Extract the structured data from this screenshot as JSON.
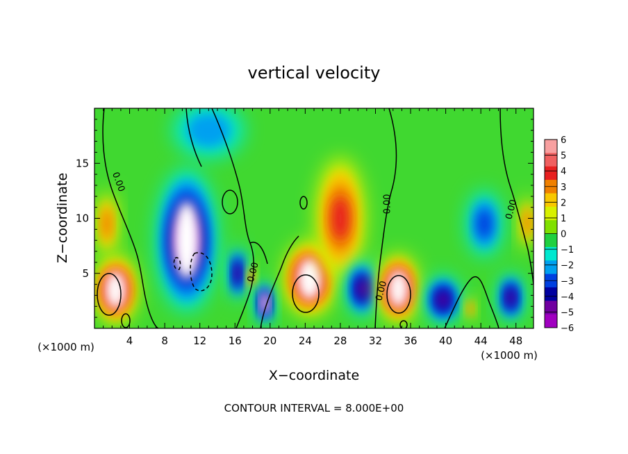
{
  "chart_data": {
    "type": "heatmap",
    "title": "vertical velocity",
    "xlabel": "X−coordinate",
    "ylabel": "Z−coordinate",
    "x_unit_left": "(×1000 m)",
    "x_unit_right": "(×1000 m)",
    "footer": "CONTOUR INTERVAL = 8.000E+00",
    "xlim": [
      0,
      50
    ],
    "ylim": [
      0,
      20
    ],
    "x_ticks": [
      4,
      8,
      12,
      16,
      20,
      24,
      28,
      32,
      36,
      40,
      44,
      48
    ],
    "y_ticks": [
      5,
      10,
      15
    ],
    "colorbar": {
      "levels": [
        "6",
        "5",
        "4",
        "3",
        "2",
        "1",
        "0",
        "−1",
        "−2",
        "−3",
        "−4",
        "−5",
        "−6"
      ],
      "colors": [
        "#f8a0a0",
        "#f06060",
        "#e82020",
        "#f08000",
        "#f8c800",
        "#d8f000",
        "#80e000",
        "#20d040",
        "#00e8d0",
        "#00a0f0",
        "#0040e0",
        "#0000a0",
        "#7000a0",
        "#a000c0"
      ],
      "range": [
        -6,
        6
      ]
    },
    "contour_labels": [
      {
        "text": "0.00",
        "x": 2.7,
        "z": 13.3,
        "rot": 70
      },
      {
        "text": "0.00",
        "x": 18.1,
        "z": 5.1,
        "rot": -75
      },
      {
        "text": "0.00",
        "x": 32.7,
        "z": 3.4,
        "rot": -75
      },
      {
        "text": "0.00",
        "x": 33.4,
        "z": 11.3,
        "rot": -90
      },
      {
        "text": "0.00",
        "x": 47.5,
        "z": 10.8,
        "rot": -75
      }
    ],
    "cells": [
      {
        "x": 2.4,
        "z": 3.5,
        "rx": 2.5,
        "rz": 3.2,
        "v": 6
      },
      {
        "x": 1.4,
        "z": 9.5,
        "rx": 1.2,
        "rz": 3.0,
        "v": 3
      },
      {
        "x": 10.5,
        "z": 8.0,
        "rx": 3.5,
        "rz": 6.5,
        "v": -6
      },
      {
        "x": 16.3,
        "z": 5.0,
        "rx": 1.0,
        "rz": 2.5,
        "v": -5
      },
      {
        "x": 17.9,
        "z": 4.6,
        "rx": 0.5,
        "rz": 1.0,
        "v": 4
      },
      {
        "x": 19.4,
        "z": 2.3,
        "rx": 1.0,
        "rz": 2.0,
        "v": -6
      },
      {
        "x": 24.5,
        "z": 4.5,
        "rx": 3.0,
        "rz": 3.5,
        "v": 6
      },
      {
        "x": 28.0,
        "z": 10.0,
        "rx": 2.8,
        "rz": 5.5,
        "v": 4
      },
      {
        "x": 30.5,
        "z": 3.6,
        "rx": 1.8,
        "rz": 2.5,
        "v": -5
      },
      {
        "x": 34.6,
        "z": 3.6,
        "rx": 2.4,
        "rz": 3.2,
        "v": 6
      },
      {
        "x": 39.7,
        "z": 2.6,
        "rx": 2.0,
        "rz": 2.2,
        "v": -5
      },
      {
        "x": 44.4,
        "z": 9.5,
        "rx": 2.0,
        "rz": 3.0,
        "v": -3
      },
      {
        "x": 47.4,
        "z": 2.8,
        "rx": 1.4,
        "rz": 2.2,
        "v": -5
      },
      {
        "x": 49.3,
        "z": 9.6,
        "rx": 0.9,
        "rz": 2.5,
        "v": 3
      },
      {
        "x": 13.0,
        "z": 18.0,
        "rx": 4.0,
        "rz": 2.5,
        "v": -2
      },
      {
        "x": 42.8,
        "z": 1.8,
        "rx": 0.6,
        "rz": 1.0,
        "v": 3
      }
    ]
  }
}
